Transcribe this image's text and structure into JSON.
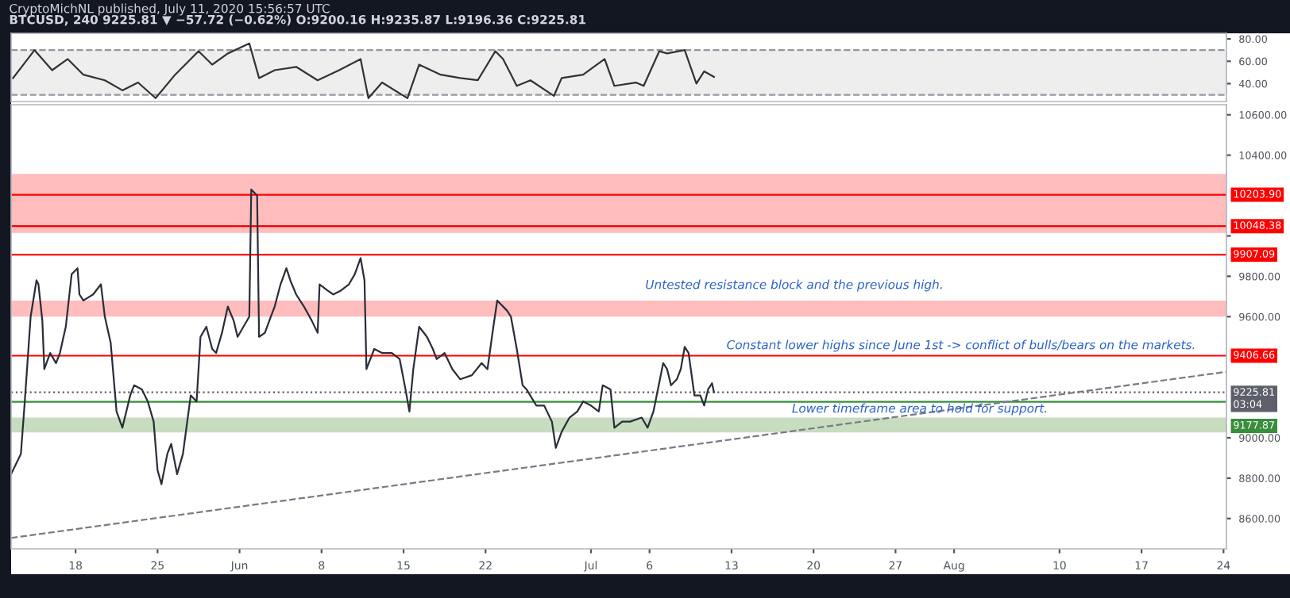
{
  "chart_data": [
    {
      "type": "line",
      "title": "CryptoMichNL published, July 11, 2020 15:56:57 UTC",
      "subtitle": "BTCUSD, 240 9225.81 ▼ −57.72 (−0.62%) O:9200.16 H:9235.87 L:9196.36 C:9225.81",
      "xlim": [
        "2020-05-12T12:00",
        "2020-08-24T06:00"
      ],
      "ylim": [
        24,
        85
      ],
      "tick_labels": "y",
      "yticks": [
        {
          "value": 40,
          "label": "40.00"
        },
        {
          "value": 60,
          "label": "60.00"
        },
        {
          "value": 80,
          "label": "80.00"
        }
      ],
      "bands": [
        {
          "axis": "y",
          "from": 30,
          "to": 70,
          "color": "#eeeeee"
        }
      ],
      "ref_lines": [
        {
          "axis": "y",
          "value": 70,
          "color": "#9598a1",
          "line_style": "dashed"
        },
        {
          "axis": "y",
          "value": 30,
          "color": "#9598a1",
          "line_style": "dashed"
        }
      ],
      "series": [
        {
          "color": "#333333",
          "x": [
            "2020-05-12T16:00",
            "2020-05-14T12:00",
            "2020-05-15T04:00",
            "2020-05-16T00:00",
            "2020-05-17T08:00",
            "2020-05-18T16:00",
            "2020-05-20T12:00",
            "2020-05-22T00:00",
            "2020-05-23T08:00",
            "2020-05-24T20:00",
            "2020-05-26T12:00",
            "2020-05-28T12:00",
            "2020-05-29T16:00",
            "2020-05-31T00:00",
            "2020-06-01T20:00",
            "2020-06-02T16:00",
            "2020-06-04T00:00",
            "2020-06-05T20:00",
            "2020-06-07T16:00",
            "2020-06-09T12:00",
            "2020-06-11T08:00",
            "2020-06-12T00:00",
            "2020-06-13T04:00",
            "2020-06-15T08:00",
            "2020-06-16T08:00",
            "2020-06-18T04:00",
            "2020-06-19T20:00",
            "2020-06-21T08:00",
            "2020-06-22T20:00",
            "2020-06-23T12:00",
            "2020-06-24T16:00",
            "2020-06-25T20:00",
            "2020-06-27T20:00",
            "2020-06-28T12:00",
            "2020-06-30T08:00",
            "2020-07-02T04:00",
            "2020-07-03T00:00",
            "2020-07-04T20:00",
            "2020-07-05T12:00",
            "2020-07-06T20:00",
            "2020-07-07T12:00",
            "2020-07-09T00:00",
            "2020-07-10T00:00",
            "2020-07-10T16:00",
            "2020-07-11T12:00"
          ],
          "values": [
            45,
            70,
            62,
            52,
            62,
            48,
            43,
            34,
            41,
            27,
            48,
            69,
            57,
            67,
            76,
            45,
            52,
            55,
            43,
            52,
            62,
            27,
            41,
            27,
            57,
            48,
            45,
            43,
            69,
            62,
            38,
            43,
            29,
            45,
            48,
            62,
            38,
            41,
            38,
            69,
            67,
            70,
            40,
            51,
            46
          ]
        }
      ]
    },
    {
      "type": "line",
      "xlim": [
        "2020-05-12T12:00",
        "2020-08-24T06:00"
      ],
      "ylim": [
        8450,
        10650
      ],
      "xticks": [
        {
          "value": "2020-05-18",
          "label": "18"
        },
        {
          "value": "2020-05-25",
          "label": "25"
        },
        {
          "value": "2020-06-01",
          "label": "Jun"
        },
        {
          "value": "2020-06-08",
          "label": "8"
        },
        {
          "value": "2020-06-15",
          "label": "15"
        },
        {
          "value": "2020-06-22",
          "label": "22"
        },
        {
          "value": "2020-07-01",
          "label": "Jul"
        },
        {
          "value": "2020-07-06",
          "label": "6"
        },
        {
          "value": "2020-07-13",
          "label": "13"
        },
        {
          "value": "2020-07-20",
          "label": "20"
        },
        {
          "value": "2020-07-27",
          "label": "27"
        },
        {
          "value": "2020-08-01",
          "label": "Aug"
        },
        {
          "value": "2020-08-10",
          "label": "10"
        },
        {
          "value": "2020-08-17",
          "label": "17"
        },
        {
          "value": "2020-08-24",
          "label": "24"
        }
      ],
      "yticks": [
        {
          "value": 8600,
          "label": "8600.00"
        },
        {
          "value": 8800,
          "label": "8800.00"
        },
        {
          "value": 9000,
          "label": "9000.00"
        },
        {
          "value": 9600,
          "label": "9600.00"
        },
        {
          "value": 9800,
          "label": "9800.00"
        },
        {
          "value": 10000,
          "label": null
        },
        {
          "value": 10400,
          "label": "10400.00"
        },
        {
          "value": 10600,
          "label": "10600.00"
        }
      ],
      "bands": [
        {
          "axis": "y",
          "from": 10015,
          "to": 10307,
          "color": "#ffbdbd"
        },
        {
          "axis": "y",
          "from": 9600,
          "to": 9680,
          "color": "#ffbdbd"
        },
        {
          "axis": "y",
          "from": 9027,
          "to": 9100,
          "color": "#c8dcbf"
        }
      ],
      "ref_lines": [
        {
          "axis": "y",
          "value": 10203.9,
          "label": "10203.90",
          "color": "#ff0000",
          "line_style": "solid"
        },
        {
          "axis": "y",
          "value": 10048.38,
          "label": "10048.38",
          "color": "#ff0000",
          "line_style": "solid"
        },
        {
          "axis": "y",
          "value": 9907.09,
          "label": "9907.09",
          "color": "#ff0000",
          "line_style": "solid"
        },
        {
          "axis": "y",
          "value": 9406.66,
          "label": "9406.66",
          "color": "#ff0000",
          "line_style": "solid"
        },
        {
          "axis": "y",
          "value": 9225.81,
          "label": "9225.81\n03:04",
          "color": "#5d606b",
          "line_style": "dotted"
        },
        {
          "axis": "y",
          "value": 9177.87,
          "label": "9177.87",
          "color": "#388e3c",
          "line_style": "solid"
        }
      ],
      "annotations": [
        "Untested resistance block and the previous high.",
        "Constant lower highs since June 1st -> conflict of bulls/bears on the markets.",
        "Lower timeframe area to hold for support."
      ],
      "series": [
        {
          "color": "#2a2e39",
          "x": [
            "2020-05-12T12:00",
            "2020-05-13T08:00",
            "2020-05-13T16:00",
            "2020-05-14T04:00",
            "2020-05-14T16:00",
            "2020-05-14T20:00",
            "2020-05-15T04:00",
            "2020-05-15T08:00",
            "2020-05-15T20:00",
            "2020-05-16T08:00",
            "2020-05-16T16:00",
            "2020-05-17T04:00",
            "2020-05-17T16:00",
            "2020-05-18T04:00",
            "2020-05-18T08:00",
            "2020-05-18T16:00",
            "2020-05-19T12:00",
            "2020-05-20T04:00",
            "2020-05-20T12:00",
            "2020-05-21T00:00",
            "2020-05-21T12:00",
            "2020-05-22T00:00",
            "2020-05-22T16:00",
            "2020-05-23T00:00",
            "2020-05-23T16:00",
            "2020-05-24T04:00",
            "2020-05-24T16:00",
            "2020-05-25T00:00",
            "2020-05-25T08:00",
            "2020-05-25T20:00",
            "2020-05-26T04:00",
            "2020-05-26T16:00",
            "2020-05-27T04:00",
            "2020-05-27T20:00",
            "2020-05-28T08:00",
            "2020-05-28T16:00",
            "2020-05-29T04:00",
            "2020-05-29T16:00",
            "2020-05-30T00:00",
            "2020-05-30T12:00",
            "2020-05-31T00:00",
            "2020-05-31T12:00",
            "2020-05-31T20:00",
            "2020-06-01T08:00",
            "2020-06-01T20:00",
            "2020-06-02T00:00",
            "2020-06-02T12:00",
            "2020-06-02T16:00",
            "2020-06-03T04:00",
            "2020-06-03T16:00",
            "2020-06-04T00:00",
            "2020-06-04T12:00",
            "2020-06-05T00:00",
            "2020-06-05T08:00",
            "2020-06-05T20:00",
            "2020-06-06T12:00",
            "2020-06-07T04:00",
            "2020-06-07T16:00",
            "2020-06-07T20:00",
            "2020-06-08T12:00",
            "2020-06-09T00:00",
            "2020-06-09T16:00",
            "2020-06-10T08:00",
            "2020-06-10T20:00",
            "2020-06-11T08:00",
            "2020-06-11T16:00",
            "2020-06-11T20:00",
            "2020-06-12T12:00",
            "2020-06-13T04:00",
            "2020-06-14T00:00",
            "2020-06-14T16:00",
            "2020-06-15T04:00",
            "2020-06-15T12:00",
            "2020-06-15T20:00",
            "2020-06-16T08:00",
            "2020-06-17T00:00",
            "2020-06-17T12:00",
            "2020-06-17T20:00",
            "2020-06-18T12:00",
            "2020-06-19T04:00",
            "2020-06-19T20:00",
            "2020-06-20T20:00",
            "2020-06-21T16:00",
            "2020-06-22T04:00",
            "2020-06-22T16:00",
            "2020-06-23T00:00",
            "2020-06-23T20:00",
            "2020-06-24T04:00",
            "2020-06-24T16:00",
            "2020-06-25T04:00",
            "2020-06-25T12:00",
            "2020-06-26T08:00",
            "2020-06-27T00:00",
            "2020-06-27T16:00",
            "2020-06-28T00:00",
            "2020-06-28T12:00",
            "2020-06-29T04:00",
            "2020-06-29T20:00",
            "2020-06-30T08:00",
            "2020-07-01T00:00",
            "2020-07-01T16:00",
            "2020-07-02T00:00",
            "2020-07-02T16:00",
            "2020-07-03T00:00",
            "2020-07-03T16:00",
            "2020-07-04T08:00",
            "2020-07-05T08:00",
            "2020-07-05T20:00",
            "2020-07-06T08:00",
            "2020-07-07T04:00",
            "2020-07-07T12:00",
            "2020-07-07T20:00",
            "2020-07-08T08:00",
            "2020-07-08T16:00",
            "2020-07-09T00:00",
            "2020-07-09T08:00",
            "2020-07-09T20:00",
            "2020-07-10T08:00",
            "2020-07-10T16:00",
            "2020-07-11T00:00",
            "2020-07-11T08:00",
            "2020-07-11T12:00"
          ],
          "values": [
            8820,
            8920,
            9180,
            9600,
            9780,
            9760,
            9580,
            9340,
            9420,
            9370,
            9420,
            9550,
            9810,
            9840,
            9710,
            9680,
            9710,
            9760,
            9600,
            9470,
            9130,
            9050,
            9210,
            9260,
            9240,
            9180,
            9080,
            8840,
            8770,
            8920,
            8970,
            8820,
            8920,
            9210,
            9180,
            9500,
            9550,
            9440,
            9420,
            9520,
            9650,
            9580,
            9500,
            9550,
            9600,
            10230,
            10200,
            9500,
            9520,
            9600,
            9650,
            9760,
            9840,
            9780,
            9710,
            9650,
            9580,
            9520,
            9760,
            9730,
            9710,
            9730,
            9760,
            9810,
            9890,
            9780,
            9340,
            9440,
            9420,
            9420,
            9390,
            9240,
            9130,
            9340,
            9550,
            9500,
            9440,
            9390,
            9420,
            9340,
            9290,
            9310,
            9370,
            9340,
            9550,
            9680,
            9630,
            9600,
            9440,
            9260,
            9240,
            9160,
            9160,
            9080,
            8950,
            9030,
            9100,
            9130,
            9180,
            9160,
            9130,
            9260,
            9240,
            9050,
            9080,
            9080,
            9100,
            9050,
            9130,
            9370,
            9340,
            9260,
            9290,
            9340,
            9450,
            9420,
            9210,
            9210,
            9160,
            9240,
            9270,
            9226
          ]
        },
        {
          "type": "line",
          "color": "#787b86",
          "line_style": "dashed",
          "x": [
            "2020-05-12T12:00",
            "2020-08-24T06:00"
          ],
          "values": [
            8504,
            9327
          ]
        }
      ]
    }
  ]
}
